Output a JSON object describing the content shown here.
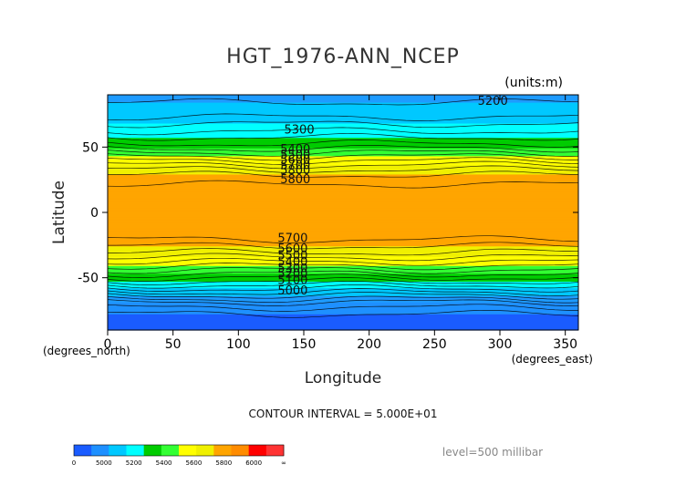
{
  "chart_data": {
    "type": "heatmap",
    "title": "HGT_1976-ANN_NCEP",
    "units_note": "(units:m)",
    "xlabel": "Longitude",
    "ylabel": "Latitude",
    "x_units_note": "(degrees_east)",
    "y_units_note": "(degrees_north)",
    "xlim": [
      0,
      360
    ],
    "ylim": [
      -90,
      90
    ],
    "x_ticks": [
      "0",
      "50",
      "100",
      "150",
      "200",
      "250",
      "300",
      "350"
    ],
    "y_ticks": [
      "50",
      "0",
      "-50"
    ],
    "contour_interval_text": "CONTOUR INTERVAL = 5.000E+01",
    "level_text": "level=500 millibar",
    "contour_labels": [
      "5200",
      "5300",
      "5400",
      "5500",
      "5600",
      "5700",
      "5800",
      "5800",
      "5700",
      "5600",
      "5500",
      "5400",
      "5300",
      "5200",
      "5100",
      "5000"
    ],
    "colorbar": {
      "labels": [
        "0",
        "5000",
        "5200",
        "5400",
        "5600",
        "5800",
        "6000",
        "∞"
      ],
      "colors": [
        "#1a5cff",
        "#1e90ff",
        "#00c8ff",
        "#00ffff",
        "#00cc00",
        "#33ff33",
        "#ffff00",
        "#f0f000",
        "#ffa500",
        "#ff8c00",
        "#ff0000",
        "#ff3333"
      ]
    },
    "zonal_profile": [
      {
        "lat": 90,
        "value": 5180
      },
      {
        "lat": 75,
        "value": 5230
      },
      {
        "lat": 60,
        "value": 5370
      },
      {
        "lat": 50,
        "value": 5480
      },
      {
        "lat": 40,
        "value": 5640
      },
      {
        "lat": 30,
        "value": 5790
      },
      {
        "lat": 20,
        "value": 5860
      },
      {
        "lat": 0,
        "value": 5870
      },
      {
        "lat": -20,
        "value": 5860
      },
      {
        "lat": -30,
        "value": 5760
      },
      {
        "lat": -40,
        "value": 5620
      },
      {
        "lat": -50,
        "value": 5450
      },
      {
        "lat": -60,
        "value": 5270
      },
      {
        "lat": -70,
        "value": 5080
      },
      {
        "lat": -80,
        "value": 4980
      },
      {
        "lat": -90,
        "value": 4970
      }
    ]
  }
}
